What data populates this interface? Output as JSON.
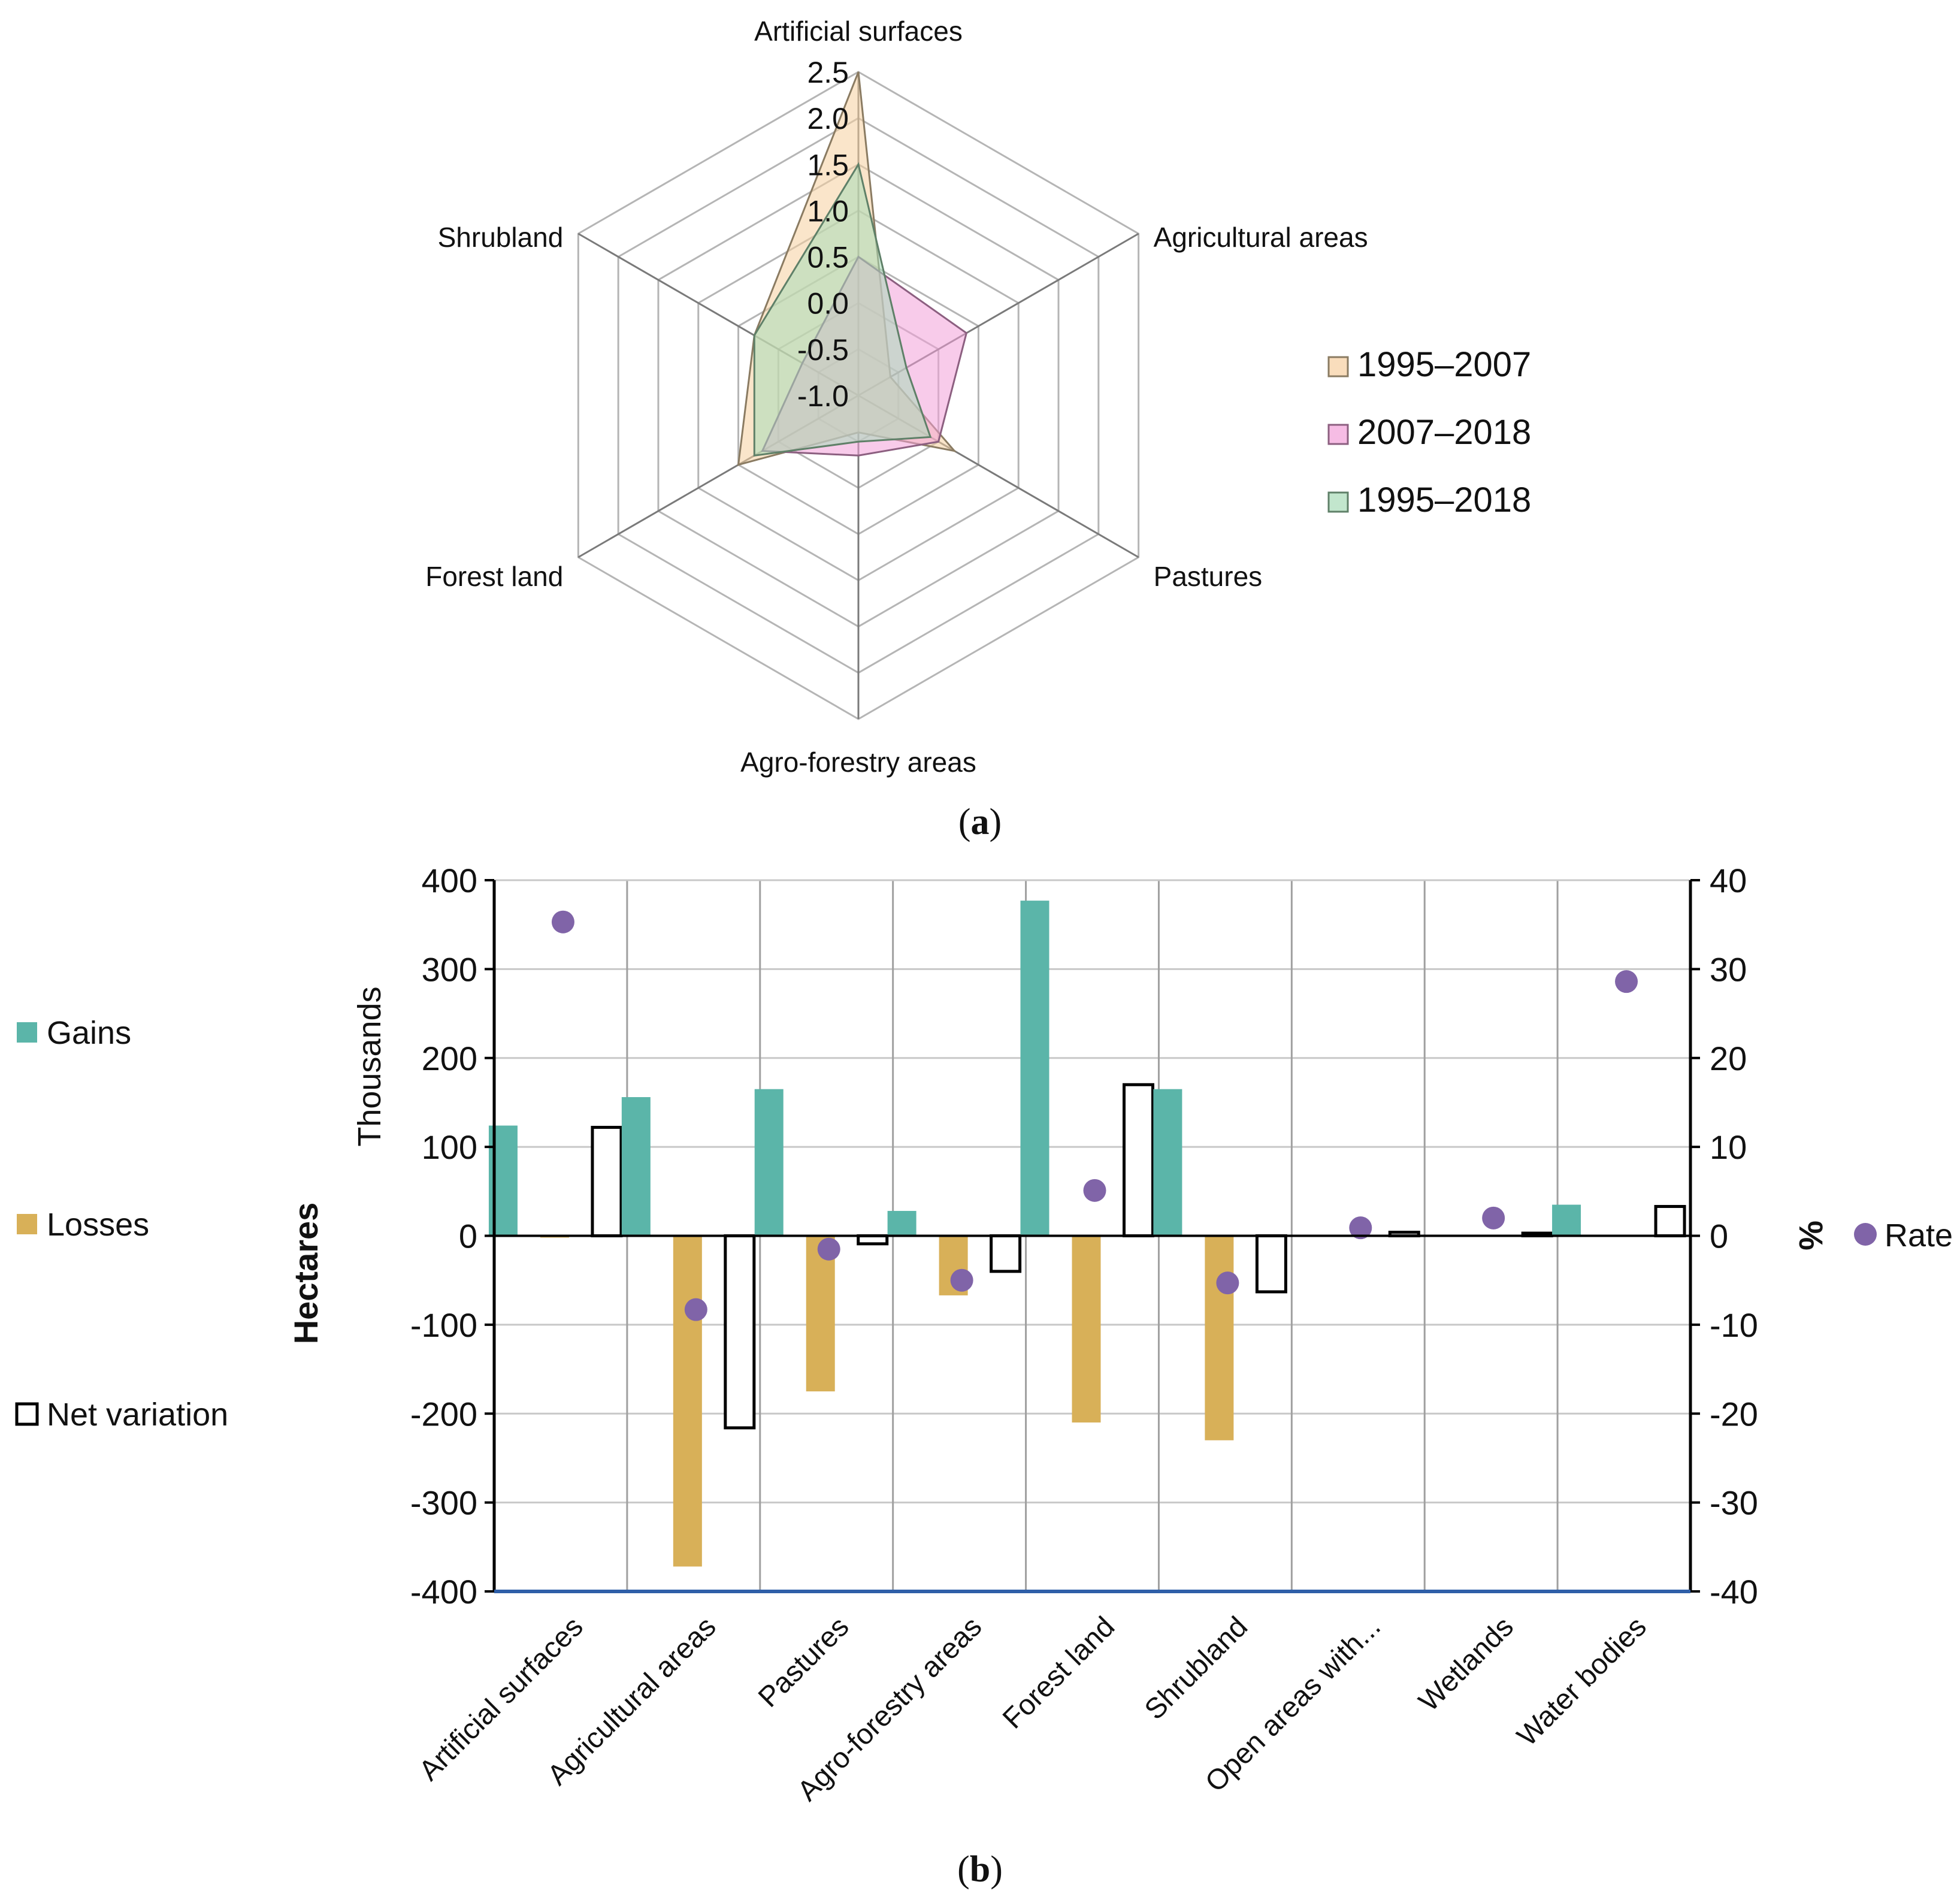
{
  "chart_data": [
    {
      "type": "radar",
      "panel": "a",
      "caption": "a",
      "axes": [
        "Artificial surfaces",
        "Agricultural areas",
        "Pastures",
        "Agro-forestry areas",
        "Forest land",
        "Shrubland"
      ],
      "range": [
        -1.0,
        2.5
      ],
      "tick_labels": [
        "-1.0",
        "-0.5",
        "0.0",
        "0.5",
        "1.0",
        "1.5",
        "2.0",
        "2.5"
      ],
      "tick_values": [
        -1.0,
        -0.5,
        0.0,
        0.5,
        1.0,
        1.5,
        2.0,
        2.5
      ],
      "series": [
        {
          "name": "1995–2007",
          "color": "#f6cf9f",
          "stroke": "#8a7b62",
          "values": [
            2.5,
            -0.6,
            0.2,
            -0.6,
            0.5,
            0.3
          ]
        },
        {
          "name": "2007–2018",
          "color": "#f2a0d8",
          "stroke": "#8c5f80",
          "values": [
            0.5,
            0.35,
            0.0,
            -0.35,
            0.2,
            -0.3
          ]
        },
        {
          "name": "1995–2018",
          "color": "#a8dcb8",
          "stroke": "#5f8068",
          "values": [
            1.5,
            -0.4,
            -0.1,
            -0.5,
            0.3,
            0.3
          ]
        }
      ],
      "legend_position": "right"
    },
    {
      "type": "bar",
      "panel": "b",
      "caption": "b",
      "categories": [
        "Artificial surfaces",
        "Agricultural areas",
        "Pastures",
        "Agro-forestry areas",
        "Forest land",
        "Shrubland",
        "Open areas with...",
        "Wetlands",
        "Water bodies"
      ],
      "series": [
        {
          "name": "Gains",
          "color": "#5bb5a9",
          "values": [
            124,
            156,
            165,
            28,
            377,
            165,
            0,
            0,
            35
          ]
        },
        {
          "name": "Losses",
          "color": "#d8b058",
          "values": [
            -2,
            -372,
            -175,
            -67,
            -210,
            -230,
            0,
            0,
            0
          ]
        },
        {
          "name": "Net variation",
          "color": "#ffffff",
          "values": [
            122,
            -216,
            -9,
            -40,
            170,
            -63,
            4,
            3,
            33
          ]
        }
      ],
      "rate": {
        "name": "Rate",
        "color": "#8064a8",
        "values": [
          35.3,
          -8.3,
          -1.5,
          -5.0,
          5.1,
          -5.3,
          0.9,
          2.0,
          28.6
        ]
      },
      "ylabel": "Hectares",
      "ylabel_units": "Thousands",
      "ylim": [
        -400,
        400
      ],
      "yticks": [
        -400,
        -300,
        -200,
        -100,
        0,
        100,
        200,
        300,
        400
      ],
      "ytick_labels": [
        "-400",
        "-300",
        "-200",
        "-100",
        "0",
        "100",
        "200",
        "300",
        "400"
      ],
      "y2label": "%",
      "y2lim": [
        -40,
        40
      ],
      "y2ticks": [
        -40,
        -30,
        -20,
        -10,
        0,
        10,
        20,
        30,
        40
      ],
      "y2tick_labels": [
        "-40",
        "-30",
        "-20",
        "-10",
        "0",
        "10",
        "20",
        "30",
        "40"
      ],
      "legend_position": "left",
      "grid": true
    }
  ]
}
